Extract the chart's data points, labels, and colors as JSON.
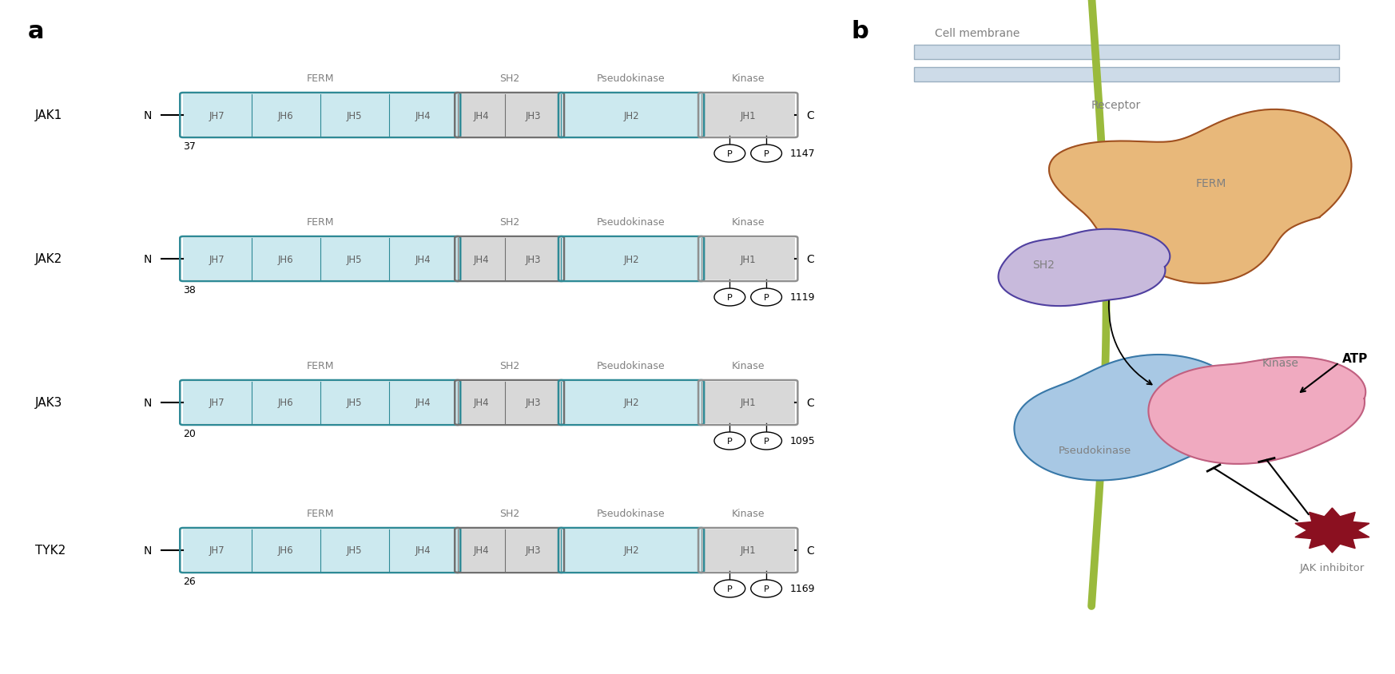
{
  "jaks": [
    {
      "name": "JAK1",
      "start": "37",
      "end": "1147"
    },
    {
      "name": "JAK2",
      "start": "38",
      "end": "1119"
    },
    {
      "name": "JAK3",
      "start": "20",
      "end": "1095"
    },
    {
      "name": "TYK2",
      "start": "26",
      "end": "1169"
    }
  ],
  "ferm_fill": "#cce9ef",
  "ferm_edge": "#2e8a96",
  "sh2_fill": "#d8d8d8",
  "sh2_edge": "#707070",
  "pseudo_fill": "#cce9ef",
  "pseudo_edge": "#2e8a96",
  "kinase_fill": "#d8d8d8",
  "kinase_edge": "#909090",
  "bg_color": "#ffffff",
  "label_gray": "#808080",
  "domain_label_color": "#606060"
}
